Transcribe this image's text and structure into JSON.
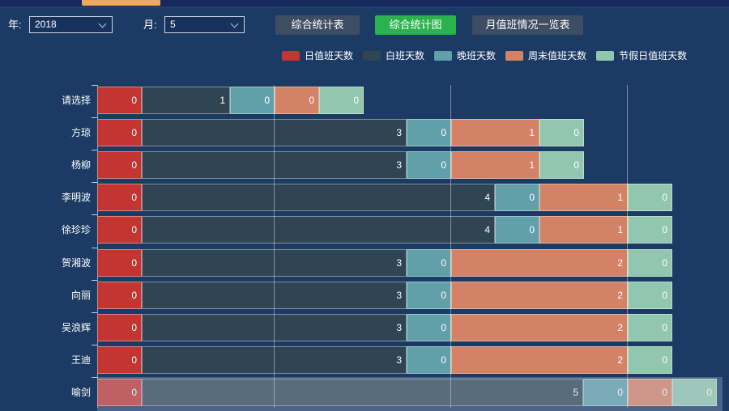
{
  "app": {
    "top_accent_color": "#edaa5e"
  },
  "toolbar": {
    "year_label": "年:",
    "year_value": "2018",
    "month_label": "月:",
    "month_value": "5",
    "buttons": [
      {
        "label": "综合统计表",
        "variant": "slate"
      },
      {
        "label": "综合统计图",
        "variant": "green"
      },
      {
        "label": "月值班情况一览表",
        "variant": "slate"
      }
    ],
    "button_colors": {
      "slate": "#3d4d63",
      "green": "#2bb24e"
    }
  },
  "legend": [
    {
      "label": "日值班天数",
      "color": "#c23531"
    },
    {
      "label": "白班天数",
      "color": "#2f4554"
    },
    {
      "label": "晚班天数",
      "color": "#61a0a8"
    },
    {
      "label": "周末值班天数",
      "color": "#d48265"
    },
    {
      "label": "节假日值班天数",
      "color": "#91c7ae"
    }
  ],
  "chart_data": {
    "type": "bar",
    "orientation": "horizontal",
    "stacked": true,
    "categories": [
      "请选择",
      "方琼",
      "杨柳",
      "李明波",
      "徐珍珍",
      "贺湘波",
      "向丽",
      "吴浪辉",
      "王迪",
      "喻剑"
    ],
    "series": [
      {
        "name": "日值班天数",
        "color": "#c23531",
        "values": [
          0,
          0,
          0,
          0,
          0,
          0,
          0,
          0,
          0,
          0
        ]
      },
      {
        "name": "白班天数",
        "color": "#2f4554",
        "values": [
          1,
          3,
          3,
          4,
          4,
          3,
          3,
          3,
          3,
          5
        ]
      },
      {
        "name": "晚班天数",
        "color": "#61a0a8",
        "values": [
          0,
          0,
          0,
          0,
          0,
          0,
          0,
          0,
          0,
          0
        ]
      },
      {
        "name": "周末值班天数",
        "color": "#d48265",
        "values": [
          0,
          1,
          1,
          1,
          1,
          2,
          2,
          2,
          2,
          0
        ]
      },
      {
        "name": "节假日值班天数",
        "color": "#91c7ae",
        "values": [
          0,
          0,
          0,
          0,
          0,
          0,
          0,
          0,
          0,
          0
        ]
      }
    ],
    "value_labels_position": "inside-right",
    "x_axis_gridline_values": [
      2,
      4,
      6
    ],
    "grid": true,
    "legend_position": "top",
    "highlighted_category": "喻剑"
  }
}
